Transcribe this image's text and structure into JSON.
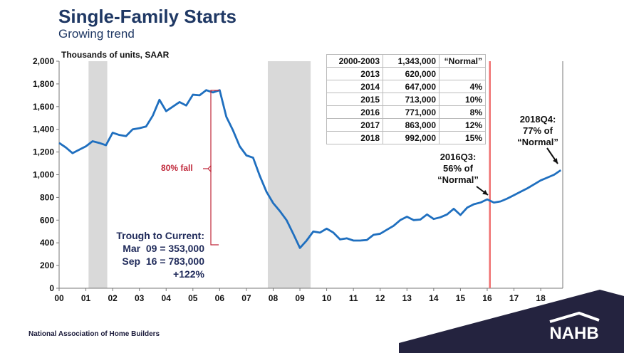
{
  "header": {
    "title": "Single-Family Starts",
    "subtitle": "Growing trend"
  },
  "footer": {
    "org": "National Association of Home Builders",
    "logo_text": "NAHB"
  },
  "colors": {
    "series": "#1f6fbf",
    "recession": "#d9d9d9",
    "marker_line": "#f07070",
    "fall_bracket": "#c0283a",
    "navy": "#24233f"
  },
  "table": [
    [
      "2000-2003",
      "1,343,000",
      "“Normal”"
    ],
    [
      "2013",
      "620,000",
      ""
    ],
    [
      "2014",
      "647,000",
      "4%"
    ],
    [
      "2015",
      "713,000",
      "10%"
    ],
    [
      "2016",
      "771,000",
      "8%"
    ],
    [
      "2017",
      "863,000",
      "12%"
    ],
    [
      "2018",
      "992,000",
      "15%"
    ]
  ],
  "annotations": {
    "fall": "80% fall",
    "trough_lines": [
      "Trough to Current:",
      "Mar  09 = 353,000",
      "Sep  16 = 783,000",
      "+122%"
    ],
    "q3_2016": [
      "2016Q3:",
      "56% of",
      "“Normal”"
    ],
    "q4_2018": [
      "2018Q4:",
      "77% of",
      "“Normal”"
    ]
  },
  "chart_data": {
    "type": "line",
    "ylabel": "Thousands of units, SAAR",
    "ylim": [
      0,
      2000
    ],
    "yticks": [
      "0",
      "200",
      "400",
      "600",
      "800",
      "1,000",
      "1,200",
      "1,400",
      "1,600",
      "1,800",
      "2,000"
    ],
    "xticks": [
      "00",
      "01",
      "02",
      "03",
      "04",
      "05",
      "06",
      "07",
      "08",
      "09",
      "10",
      "11",
      "12",
      "13",
      "14",
      "15",
      "16",
      "17",
      "18"
    ],
    "x_start": "2000Q1",
    "frequency": "quarterly",
    "values": [
      1280,
      1240,
      1190,
      1220,
      1250,
      1295,
      1280,
      1260,
      1370,
      1350,
      1340,
      1400,
      1410,
      1425,
      1520,
      1660,
      1560,
      1600,
      1640,
      1610,
      1705,
      1700,
      1745,
      1725,
      1745,
      1510,
      1390,
      1250,
      1170,
      1150,
      990,
      850,
      750,
      680,
      600,
      480,
      355,
      420,
      500,
      490,
      525,
      490,
      430,
      440,
      420,
      420,
      425,
      470,
      480,
      515,
      550,
      600,
      630,
      600,
      605,
      650,
      610,
      625,
      650,
      700,
      645,
      710,
      740,
      755,
      783,
      755,
      765,
      790,
      820,
      850,
      880,
      915,
      950,
      975,
      1000,
      1040
    ],
    "recessions": [
      [
        2001.1,
        2001.8
      ],
      [
        2007.8,
        2009.4
      ]
    ],
    "vertical_marker": 2016.1,
    "grid": false
  }
}
